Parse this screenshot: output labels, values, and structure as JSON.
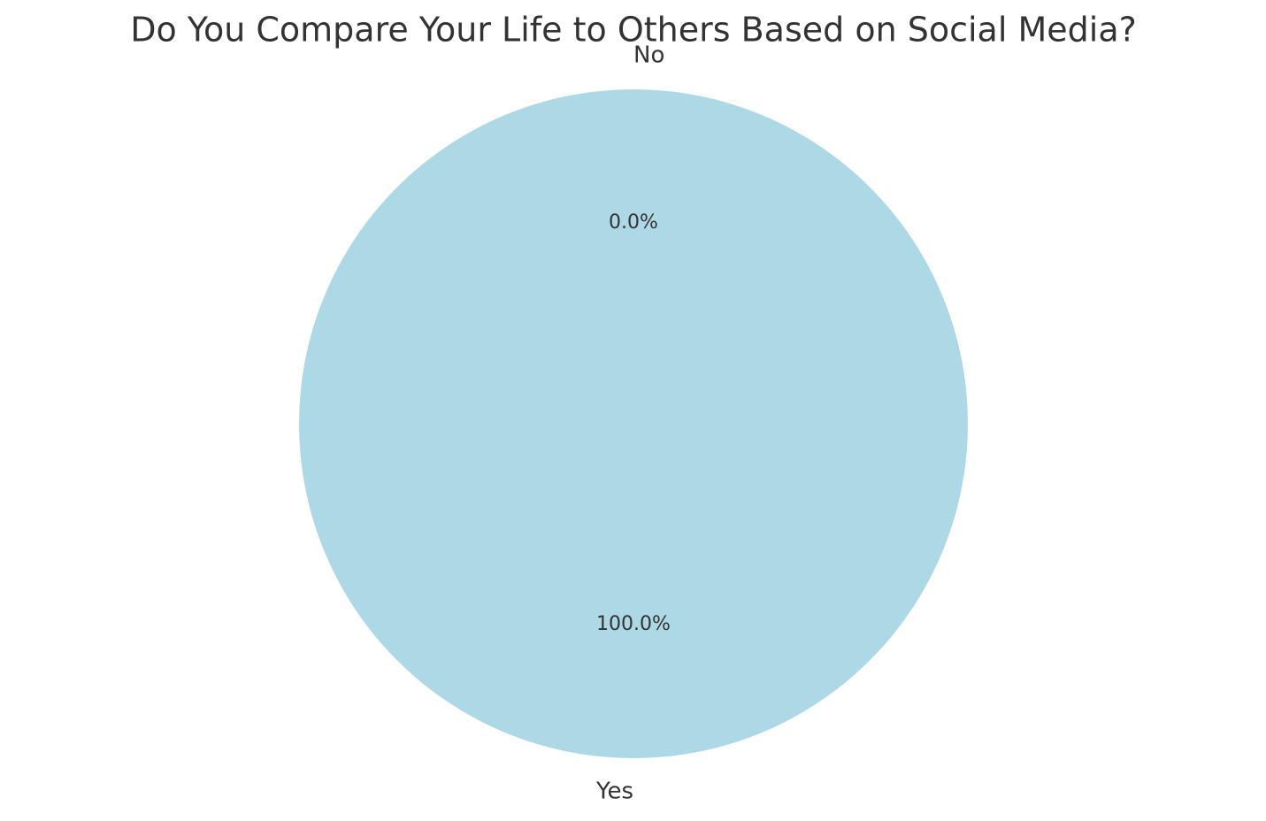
{
  "chart_data": {
    "type": "pie",
    "title": "Do You Compare Your Life to Others Based on Social Media?",
    "categories": [
      "Yes",
      "No"
    ],
    "values": [
      100,
      0
    ],
    "value_labels": [
      "100.0%",
      "0.0%"
    ],
    "colors": [
      "#add8e6",
      "#add8e6"
    ]
  }
}
